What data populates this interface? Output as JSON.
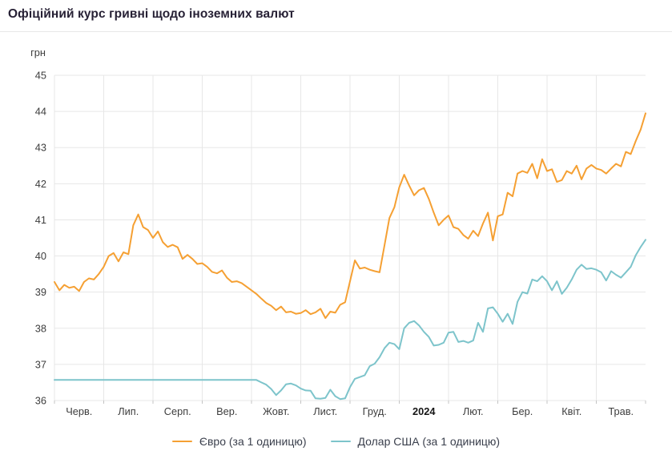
{
  "header": {
    "title": "Офіційний курс гривні щодо іноземних валют"
  },
  "chart_data": {
    "type": "line",
    "title": "Офіційний курс гривні щодо іноземних валют",
    "ylabel_unit": "грн",
    "ylim": [
      36,
      45
    ],
    "y_ticks": [
      45,
      44,
      43,
      42,
      41,
      40,
      39,
      38,
      37,
      36
    ],
    "grid": true,
    "legend_position": "bottom",
    "x_ticks": [
      {
        "label": "Черв.",
        "emphasis": false
      },
      {
        "label": "Лип.",
        "emphasis": false
      },
      {
        "label": "Серп.",
        "emphasis": false
      },
      {
        "label": "Вер.",
        "emphasis": false
      },
      {
        "label": "Жовт.",
        "emphasis": false
      },
      {
        "label": "Лист.",
        "emphasis": false
      },
      {
        "label": "Груд.",
        "emphasis": false
      },
      {
        "label": "2024",
        "emphasis": true
      },
      {
        "label": "Лют.",
        "emphasis": false
      },
      {
        "label": "Бер.",
        "emphasis": false
      },
      {
        "label": "Квіт.",
        "emphasis": false
      },
      {
        "label": "Трав.",
        "emphasis": false
      }
    ],
    "colors": {
      "euro": "#f5a033",
      "usd": "#7dc4cb",
      "grid": "#e7e7e7",
      "tick": "#c4c4c4",
      "axis_text": "#3d3d3d"
    },
    "series": [
      {
        "key": "euro",
        "name": "Євро (за 1 одиницю)",
        "color": "#f5a033",
        "values": [
          39.28,
          39.05,
          39.2,
          39.12,
          39.15,
          39.03,
          39.28,
          39.38,
          39.35,
          39.5,
          39.7,
          40.0,
          40.08,
          39.85,
          40.1,
          40.05,
          40.85,
          41.15,
          40.8,
          40.72,
          40.5,
          40.68,
          40.38,
          40.25,
          40.31,
          40.24,
          39.92,
          40.03,
          39.92,
          39.78,
          39.8,
          39.7,
          39.56,
          39.52,
          39.6,
          39.4,
          39.28,
          39.3,
          39.25,
          39.15,
          39.05,
          38.95,
          38.82,
          38.7,
          38.62,
          38.5,
          38.6,
          38.44,
          38.46,
          38.4,
          38.42,
          38.5,
          38.39,
          38.44,
          38.54,
          38.28,
          38.46,
          38.43,
          38.65,
          38.72,
          39.3,
          39.88,
          39.65,
          39.68,
          39.62,
          39.58,
          39.55,
          40.3,
          41.05,
          41.35,
          41.9,
          42.25,
          41.95,
          41.68,
          41.82,
          41.88,
          41.58,
          41.2,
          40.85,
          41.0,
          41.12,
          40.8,
          40.75,
          40.58,
          40.48,
          40.7,
          40.55,
          40.9,
          41.2,
          40.43,
          41.1,
          41.15,
          41.75,
          41.65,
          42.28,
          42.35,
          42.3,
          42.55,
          42.15,
          42.68,
          42.35,
          42.4,
          42.05,
          42.1,
          42.35,
          42.28,
          42.5,
          42.12,
          42.42,
          42.52,
          42.42,
          42.38,
          42.28,
          42.42,
          42.55,
          42.48,
          42.88,
          42.82,
          43.18,
          43.5,
          43.95
        ]
      },
      {
        "key": "usd",
        "name": "Долар США (за 1 одиницю)",
        "color": "#7dc4cb",
        "values": [
          36.57,
          36.57,
          36.57,
          36.57,
          36.57,
          36.57,
          36.57,
          36.57,
          36.57,
          36.57,
          36.57,
          36.57,
          36.57,
          36.57,
          36.57,
          36.57,
          36.57,
          36.57,
          36.57,
          36.57,
          36.57,
          36.57,
          36.57,
          36.57,
          36.57,
          36.57,
          36.57,
          36.57,
          36.57,
          36.57,
          36.57,
          36.57,
          36.57,
          36.57,
          36.57,
          36.57,
          36.57,
          36.57,
          36.57,
          36.57,
          36.57,
          36.57,
          36.5,
          36.44,
          36.32,
          36.15,
          36.28,
          36.45,
          36.47,
          36.42,
          36.33,
          36.28,
          36.27,
          36.06,
          36.05,
          36.07,
          36.3,
          36.12,
          36.04,
          36.06,
          36.37,
          36.6,
          36.65,
          36.7,
          36.95,
          37.02,
          37.2,
          37.45,
          37.6,
          37.56,
          37.42,
          38.0,
          38.15,
          38.2,
          38.08,
          37.9,
          37.76,
          37.52,
          37.54,
          37.6,
          37.88,
          37.9,
          37.62,
          37.65,
          37.6,
          37.66,
          38.15,
          37.9,
          38.55,
          38.58,
          38.4,
          38.18,
          38.4,
          38.12,
          38.73,
          39.0,
          38.96,
          39.35,
          39.3,
          39.44,
          39.3,
          39.05,
          39.3,
          38.95,
          39.12,
          39.35,
          39.62,
          39.76,
          39.64,
          39.66,
          39.62,
          39.55,
          39.32,
          39.58,
          39.48,
          39.4,
          39.55,
          39.7,
          40.02,
          40.25,
          40.45
        ]
      }
    ]
  }
}
